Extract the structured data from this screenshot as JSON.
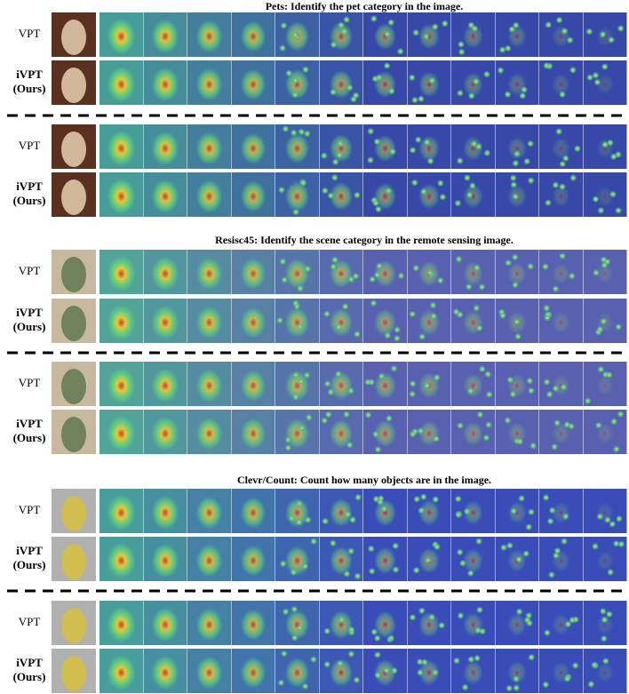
{
  "sections": [
    {
      "title": "Pets: Identify the pet category in the image.",
      "groups": [
        {
          "rows": [
            {
              "label": [
                "VPT"
              ]
            },
            {
              "label": [
                "iVPT",
                "(Ours)"
              ]
            }
          ]
        },
        {
          "rows": [
            {
              "label": [
                "VPT"
              ]
            },
            {
              "label": [
                "iVPT",
                "(Ours)"
              ]
            }
          ]
        }
      ]
    },
    {
      "title": "Resisc45: Identify the scene category in the remote sensing image.",
      "groups": [
        {
          "rows": [
            {
              "label": [
                "VPT"
              ]
            },
            {
              "label": [
                "iVPT",
                "(Ours)"
              ]
            }
          ]
        },
        {
          "rows": [
            {
              "label": [
                "VPT"
              ]
            },
            {
              "label": [
                "iVPT",
                "(Ours)"
              ]
            }
          ]
        }
      ]
    },
    {
      "title": "Clevr/Count: Count how many objects are in the image.",
      "groups": [
        {
          "rows": [
            {
              "label": [
                "VPT"
              ]
            },
            {
              "label": [
                "iVPT",
                "(Ours)"
              ]
            }
          ]
        },
        {
          "rows": [
            {
              "label": [
                "VPT"
              ]
            },
            {
              "label": [
                "iVPT",
                "(Ours)"
              ]
            }
          ]
        }
      ]
    }
  ]
}
